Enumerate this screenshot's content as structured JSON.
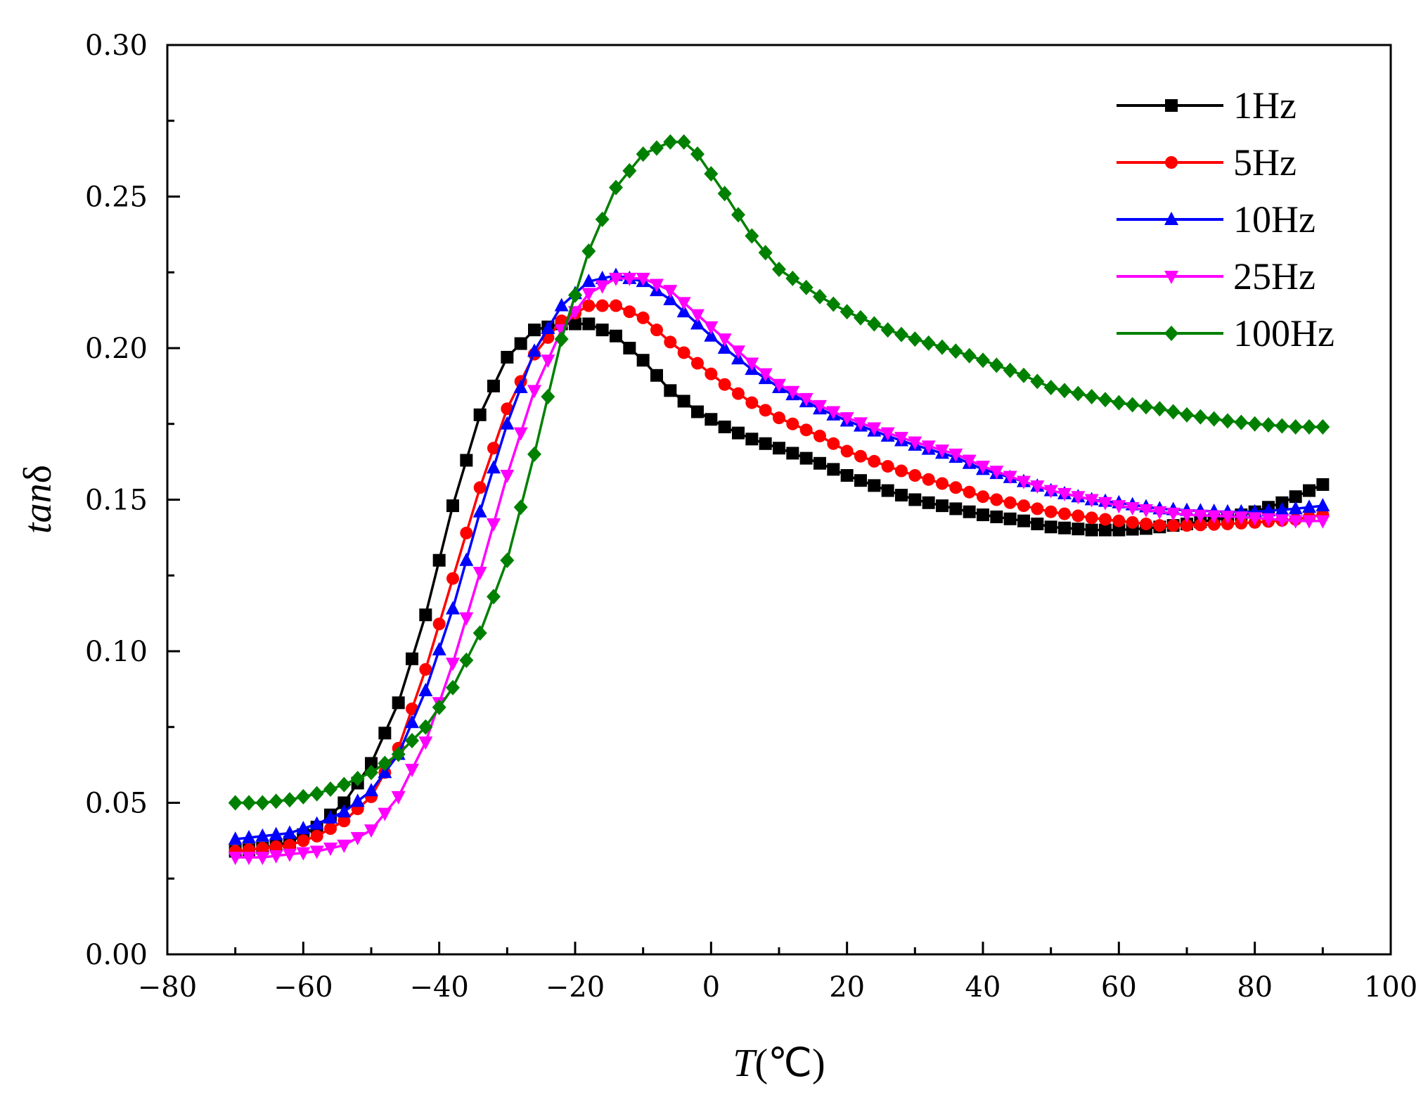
{
  "chart_data": {
    "type": "line",
    "title": "",
    "xlabel": {
      "symbol": "T",
      "unit": "(℃)"
    },
    "ylabel": {
      "italic": "tan",
      "upright": "δ"
    },
    "xlim": [
      -80,
      100
    ],
    "ylim": [
      0,
      0.3
    ],
    "x_ticks": [
      -80,
      -60,
      -40,
      -20,
      0,
      20,
      40,
      60,
      80,
      100
    ],
    "x_tick_labels": [
      "−80",
      "−60",
      "−40",
      "−20",
      "0",
      "20",
      "40",
      "60",
      "80",
      "100"
    ],
    "y_ticks": [
      0,
      0.05,
      0.1,
      0.15,
      0.2,
      0.25,
      0.3
    ],
    "y_tick_labels": [
      "0.00",
      "0.05",
      "0.10",
      "0.15",
      "0.20",
      "0.25",
      "0.30"
    ],
    "grid": false,
    "legend_position": "top-right",
    "x_start": -70,
    "x_end": 90,
    "x_step": 2,
    "series": [
      {
        "name": "1Hz",
        "color": "#000000",
        "marker": "square",
        "anchors": [
          [
            -70,
            0.034
          ],
          [
            -66,
            0.035
          ],
          [
            -62,
            0.037
          ],
          [
            -58,
            0.042
          ],
          [
            -54,
            0.05
          ],
          [
            -50,
            0.063
          ],
          [
            -46,
            0.083
          ],
          [
            -42,
            0.112
          ],
          [
            -38,
            0.148
          ],
          [
            -34,
            0.178
          ],
          [
            -30,
            0.197
          ],
          [
            -26,
            0.206
          ],
          [
            -22,
            0.208
          ],
          [
            -18,
            0.208
          ],
          [
            -14,
            0.204
          ],
          [
            -10,
            0.196
          ],
          [
            -6,
            0.186
          ],
          [
            -2,
            0.179
          ],
          [
            2,
            0.174
          ],
          [
            6,
            0.17
          ],
          [
            10,
            0.167
          ],
          [
            16,
            0.162
          ],
          [
            20,
            0.158
          ],
          [
            26,
            0.153
          ],
          [
            30,
            0.15
          ],
          [
            36,
            0.147
          ],
          [
            40,
            0.145
          ],
          [
            46,
            0.143
          ],
          [
            50,
            0.141
          ],
          [
            56,
            0.14
          ],
          [
            60,
            0.14
          ],
          [
            64,
            0.1405
          ],
          [
            70,
            0.142
          ],
          [
            76,
            0.144
          ],
          [
            80,
            0.146
          ],
          [
            84,
            0.149
          ],
          [
            88,
            0.153
          ],
          [
            90,
            0.155
          ]
        ]
      },
      {
        "name": "5Hz",
        "color": "#ff0000",
        "marker": "circle",
        "anchors": [
          [
            -70,
            0.034
          ],
          [
            -66,
            0.035
          ],
          [
            -62,
            0.036
          ],
          [
            -58,
            0.039
          ],
          [
            -54,
            0.044
          ],
          [
            -50,
            0.052
          ],
          [
            -46,
            0.068
          ],
          [
            -42,
            0.094
          ],
          [
            -38,
            0.124
          ],
          [
            -34,
            0.154
          ],
          [
            -30,
            0.18
          ],
          [
            -26,
            0.198
          ],
          [
            -22,
            0.209
          ],
          [
            -18,
            0.214
          ],
          [
            -14,
            0.214
          ],
          [
            -10,
            0.21
          ],
          [
            -6,
            0.202
          ],
          [
            -2,
            0.195
          ],
          [
            2,
            0.188
          ],
          [
            6,
            0.182
          ],
          [
            10,
            0.177
          ],
          [
            16,
            0.171
          ],
          [
            20,
            0.166
          ],
          [
            26,
            0.161
          ],
          [
            30,
            0.158
          ],
          [
            36,
            0.154
          ],
          [
            40,
            0.151
          ],
          [
            46,
            0.148
          ],
          [
            50,
            0.146
          ],
          [
            56,
            0.144
          ],
          [
            60,
            0.143
          ],
          [
            66,
            0.1415
          ],
          [
            70,
            0.1415
          ],
          [
            76,
            0.142
          ],
          [
            80,
            0.1425
          ],
          [
            86,
            0.1435
          ],
          [
            90,
            0.145
          ]
        ]
      },
      {
        "name": "10Hz",
        "color": "#0000ff",
        "marker": "triangle-up",
        "anchors": [
          [
            -70,
            0.038
          ],
          [
            -66,
            0.039
          ],
          [
            -62,
            0.04
          ],
          [
            -58,
            0.043
          ],
          [
            -54,
            0.047
          ],
          [
            -50,
            0.054
          ],
          [
            -46,
            0.066
          ],
          [
            -42,
            0.087
          ],
          [
            -38,
            0.114
          ],
          [
            -34,
            0.146
          ],
          [
            -30,
            0.175
          ],
          [
            -26,
            0.199
          ],
          [
            -22,
            0.214
          ],
          [
            -18,
            0.222
          ],
          [
            -14,
            0.224
          ],
          [
            -10,
            0.222
          ],
          [
            -6,
            0.216
          ],
          [
            -2,
            0.208
          ],
          [
            2,
            0.2
          ],
          [
            6,
            0.193
          ],
          [
            10,
            0.187
          ],
          [
            16,
            0.18
          ],
          [
            20,
            0.176
          ],
          [
            26,
            0.171
          ],
          [
            30,
            0.168
          ],
          [
            36,
            0.164
          ],
          [
            40,
            0.16
          ],
          [
            46,
            0.156
          ],
          [
            50,
            0.153
          ],
          [
            56,
            0.15
          ],
          [
            60,
            0.149
          ],
          [
            66,
            0.147
          ],
          [
            70,
            0.1465
          ],
          [
            76,
            0.146
          ],
          [
            80,
            0.146
          ],
          [
            86,
            0.147
          ],
          [
            90,
            0.148
          ]
        ]
      },
      {
        "name": "25Hz",
        "color": "#ff00ff",
        "marker": "triangle-down",
        "anchors": [
          [
            -70,
            0.032
          ],
          [
            -66,
            0.032
          ],
          [
            -62,
            0.033
          ],
          [
            -58,
            0.034
          ],
          [
            -54,
            0.036
          ],
          [
            -50,
            0.041
          ],
          [
            -46,
            0.052
          ],
          [
            -42,
            0.07
          ],
          [
            -38,
            0.096
          ],
          [
            -34,
            0.126
          ],
          [
            -30,
            0.158
          ],
          [
            -26,
            0.186
          ],
          [
            -22,
            0.206
          ],
          [
            -18,
            0.218
          ],
          [
            -14,
            0.223
          ],
          [
            -10,
            0.223
          ],
          [
            -6,
            0.219
          ],
          [
            -2,
            0.211
          ],
          [
            2,
            0.203
          ],
          [
            6,
            0.195
          ],
          [
            10,
            0.188
          ],
          [
            16,
            0.181
          ],
          [
            20,
            0.177
          ],
          [
            26,
            0.172
          ],
          [
            30,
            0.169
          ],
          [
            36,
            0.165
          ],
          [
            40,
            0.161
          ],
          [
            46,
            0.156
          ],
          [
            50,
            0.153
          ],
          [
            56,
            0.15
          ],
          [
            60,
            0.148
          ],
          [
            66,
            0.146
          ],
          [
            70,
            0.145
          ],
          [
            76,
            0.1445
          ],
          [
            80,
            0.144
          ],
          [
            86,
            0.143
          ],
          [
            90,
            0.143
          ]
        ]
      },
      {
        "name": "100Hz",
        "color": "#008000",
        "marker": "diamond",
        "anchors": [
          [
            -70,
            0.05
          ],
          [
            -66,
            0.05
          ],
          [
            -62,
            0.051
          ],
          [
            -58,
            0.053
          ],
          [
            -54,
            0.056
          ],
          [
            -50,
            0.06
          ],
          [
            -46,
            0.066
          ],
          [
            -42,
            0.075
          ],
          [
            -38,
            0.088
          ],
          [
            -34,
            0.106
          ],
          [
            -30,
            0.13
          ],
          [
            -26,
            0.165
          ],
          [
            -22,
            0.203
          ],
          [
            -18,
            0.232
          ],
          [
            -14,
            0.253
          ],
          [
            -10,
            0.264
          ],
          [
            -6,
            0.268
          ],
          [
            -4,
            0.268
          ],
          [
            -2,
            0.264
          ],
          [
            2,
            0.251
          ],
          [
            6,
            0.237
          ],
          [
            10,
            0.226
          ],
          [
            16,
            0.217
          ],
          [
            20,
            0.212
          ],
          [
            26,
            0.206
          ],
          [
            30,
            0.203
          ],
          [
            36,
            0.199
          ],
          [
            40,
            0.196
          ],
          [
            46,
            0.191
          ],
          [
            50,
            0.187
          ],
          [
            56,
            0.184
          ],
          [
            60,
            0.182
          ],
          [
            66,
            0.18
          ],
          [
            70,
            0.178
          ],
          [
            76,
            0.176
          ],
          [
            80,
            0.175
          ],
          [
            86,
            0.174
          ],
          [
            90,
            0.174
          ]
        ]
      }
    ]
  }
}
